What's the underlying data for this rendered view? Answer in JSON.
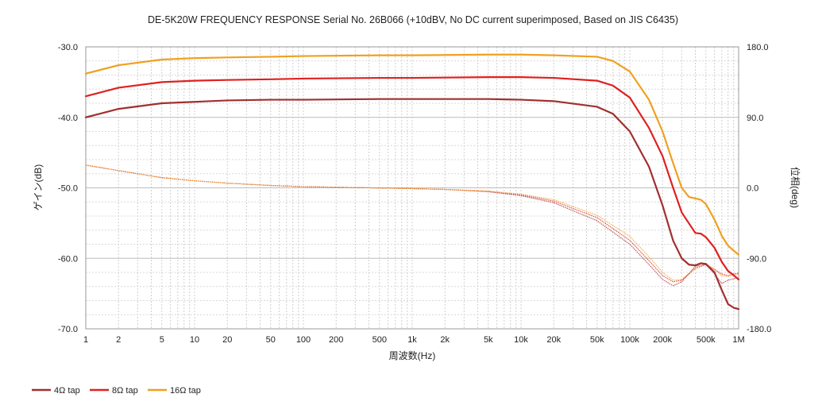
{
  "chart_data": {
    "type": "line",
    "title": "DE-5K20W FREQUENCY RESPONSE Serial No. 26B066 (+10dBV,  No DC current superimposed,  Based on JIS C6435)",
    "xlabel": "周波数(Hz)",
    "ylabel": "ゲイン(dB)",
    "y2label": "位相(deg)",
    "xscale": "log",
    "xlim": [
      1,
      1000000
    ],
    "ylim": [
      -70,
      -30
    ],
    "y2lim": [
      -180,
      180
    ],
    "x_ticks": [
      {
        "value": 1,
        "label": "1"
      },
      {
        "value": 2,
        "label": "2"
      },
      {
        "value": 5,
        "label": "5"
      },
      {
        "value": 10,
        "label": "10"
      },
      {
        "value": 20,
        "label": "20"
      },
      {
        "value": 50,
        "label": "50"
      },
      {
        "value": 100,
        "label": "100"
      },
      {
        "value": 200,
        "label": "200"
      },
      {
        "value": 500,
        "label": "500"
      },
      {
        "value": 1000,
        "label": "1k"
      },
      {
        "value": 2000,
        "label": "2k"
      },
      {
        "value": 5000,
        "label": "5k"
      },
      {
        "value": 10000,
        "label": "10k"
      },
      {
        "value": 20000,
        "label": "20k"
      },
      {
        "value": 50000,
        "label": "50k"
      },
      {
        "value": 100000,
        "label": "100k"
      },
      {
        "value": 200000,
        "label": "200k"
      },
      {
        "value": 500000,
        "label": "500k"
      },
      {
        "value": 1000000,
        "label": "1M"
      }
    ],
    "y_ticks": [
      {
        "value": -30,
        "label": "-30.0"
      },
      {
        "value": -40,
        "label": "-40.0"
      },
      {
        "value": -50,
        "label": "-50.0"
      },
      {
        "value": -60,
        "label": "-60.0"
      },
      {
        "value": -70,
        "label": "-70.0"
      }
    ],
    "y2_ticks": [
      {
        "value": 180,
        "label": "180.0"
      },
      {
        "value": 90,
        "label": "90.0"
      },
      {
        "value": 0,
        "label": "0.0"
      },
      {
        "value": -90,
        "label": "-90.0"
      },
      {
        "value": -180,
        "label": "-180.0"
      }
    ],
    "grid": true,
    "legend_position": "bottom-left",
    "series": [
      {
        "name": "4Ω tap",
        "color": "#a03030",
        "gain": [
          [
            1,
            -40.0
          ],
          [
            2,
            -38.8
          ],
          [
            5,
            -38.0
          ],
          [
            10,
            -37.8
          ],
          [
            20,
            -37.6
          ],
          [
            50,
            -37.5
          ],
          [
            100,
            -37.5
          ],
          [
            500,
            -37.4
          ],
          [
            1000,
            -37.4
          ],
          [
            5000,
            -37.4
          ],
          [
            10000,
            -37.5
          ],
          [
            20000,
            -37.7
          ],
          [
            50000,
            -38.5
          ],
          [
            70000,
            -39.5
          ],
          [
            100000,
            -42.0
          ],
          [
            150000,
            -47.0
          ],
          [
            200000,
            -52.5
          ],
          [
            250000,
            -57.5
          ],
          [
            300000,
            -60.0
          ],
          [
            350000,
            -60.9
          ],
          [
            400000,
            -61.0
          ],
          [
            450000,
            -60.7
          ],
          [
            500000,
            -60.8
          ],
          [
            600000,
            -62.0
          ],
          [
            700000,
            -64.5
          ],
          [
            800000,
            -66.5
          ],
          [
            900000,
            -67.0
          ],
          [
            1000000,
            -67.2
          ]
        ],
        "phase": [
          [
            1,
            29
          ],
          [
            2,
            22
          ],
          [
            5,
            13
          ],
          [
            10,
            9
          ],
          [
            20,
            6
          ],
          [
            50,
            3
          ],
          [
            100,
            1.5
          ],
          [
            200,
            0.8
          ],
          [
            500,
            -0.2
          ],
          [
            1000,
            -1
          ],
          [
            2000,
            -2
          ],
          [
            5000,
            -5
          ],
          [
            10000,
            -10
          ],
          [
            20000,
            -19
          ],
          [
            50000,
            -42
          ],
          [
            100000,
            -72
          ],
          [
            150000,
            -98
          ],
          [
            200000,
            -117
          ],
          [
            250000,
            -125
          ],
          [
            300000,
            -120
          ],
          [
            400000,
            -100
          ],
          [
            500000,
            -98
          ],
          [
            600000,
            -110
          ],
          [
            700000,
            -122
          ],
          [
            800000,
            -118
          ],
          [
            900000,
            -116
          ],
          [
            1000000,
            -115
          ]
        ]
      },
      {
        "name": "8Ω tap",
        "color": "#e02020",
        "gain": [
          [
            1,
            -37.0
          ],
          [
            2,
            -35.8
          ],
          [
            5,
            -35.0
          ],
          [
            10,
            -34.8
          ],
          [
            20,
            -34.7
          ],
          [
            50,
            -34.6
          ],
          [
            100,
            -34.5
          ],
          [
            500,
            -34.4
          ],
          [
            1000,
            -34.4
          ],
          [
            5000,
            -34.3
          ],
          [
            10000,
            -34.3
          ],
          [
            20000,
            -34.4
          ],
          [
            50000,
            -34.8
          ],
          [
            70000,
            -35.5
          ],
          [
            100000,
            -37.2
          ],
          [
            150000,
            -41.5
          ],
          [
            200000,
            -45.5
          ],
          [
            250000,
            -50.0
          ],
          [
            300000,
            -53.5
          ],
          [
            400000,
            -56.4
          ],
          [
            450000,
            -56.5
          ],
          [
            500000,
            -57.0
          ],
          [
            600000,
            -58.5
          ],
          [
            700000,
            -60.5
          ],
          [
            800000,
            -61.8
          ],
          [
            900000,
            -62.4
          ],
          [
            1000000,
            -63.0
          ]
        ],
        "phase": [
          [
            1,
            29
          ],
          [
            2,
            22
          ],
          [
            5,
            13
          ],
          [
            10,
            9
          ],
          [
            20,
            6
          ],
          [
            50,
            3
          ],
          [
            100,
            1.5
          ],
          [
            200,
            0.8
          ],
          [
            500,
            -0.2
          ],
          [
            1000,
            -1
          ],
          [
            2000,
            -2
          ],
          [
            5000,
            -4.5
          ],
          [
            10000,
            -9
          ],
          [
            20000,
            -17
          ],
          [
            50000,
            -38
          ],
          [
            100000,
            -67
          ],
          [
            150000,
            -93
          ],
          [
            200000,
            -112
          ],
          [
            250000,
            -120
          ],
          [
            300000,
            -118
          ],
          [
            400000,
            -103
          ],
          [
            500000,
            -98
          ],
          [
            600000,
            -104
          ],
          [
            700000,
            -110
          ],
          [
            800000,
            -112
          ],
          [
            900000,
            -110
          ],
          [
            1000000,
            -109
          ]
        ]
      },
      {
        "name": "16Ω tap",
        "color": "#f0a020",
        "gain": [
          [
            1,
            -33.8
          ],
          [
            2,
            -32.6
          ],
          [
            5,
            -31.8
          ],
          [
            10,
            -31.6
          ],
          [
            20,
            -31.5
          ],
          [
            50,
            -31.4
          ],
          [
            100,
            -31.3
          ],
          [
            500,
            -31.2
          ],
          [
            1000,
            -31.2
          ],
          [
            5000,
            -31.1
          ],
          [
            10000,
            -31.1
          ],
          [
            20000,
            -31.2
          ],
          [
            50000,
            -31.4
          ],
          [
            70000,
            -32.0
          ],
          [
            100000,
            -33.5
          ],
          [
            150000,
            -37.5
          ],
          [
            200000,
            -42.0
          ],
          [
            250000,
            -46.5
          ],
          [
            300000,
            -50.0
          ],
          [
            350000,
            -51.3
          ],
          [
            400000,
            -51.5
          ],
          [
            450000,
            -51.7
          ],
          [
            500000,
            -52.3
          ],
          [
            600000,
            -54.5
          ],
          [
            700000,
            -56.8
          ],
          [
            800000,
            -58.2
          ],
          [
            900000,
            -58.9
          ],
          [
            1000000,
            -59.5
          ]
        ],
        "phase": [
          [
            1,
            29
          ],
          [
            2,
            22
          ],
          [
            5,
            13
          ],
          [
            10,
            9
          ],
          [
            20,
            6
          ],
          [
            50,
            3
          ],
          [
            100,
            1.5
          ],
          [
            200,
            0.8
          ],
          [
            500,
            -0.2
          ],
          [
            1000,
            -1
          ],
          [
            2000,
            -2
          ],
          [
            5000,
            -4
          ],
          [
            10000,
            -8
          ],
          [
            20000,
            -15
          ],
          [
            50000,
            -35
          ],
          [
            100000,
            -62
          ],
          [
            150000,
            -88
          ],
          [
            200000,
            -108
          ],
          [
            250000,
            -118
          ],
          [
            300000,
            -117
          ],
          [
            400000,
            -102
          ],
          [
            500000,
            -96
          ],
          [
            600000,
            -105
          ],
          [
            700000,
            -112
          ],
          [
            800000,
            -113
          ],
          [
            900000,
            -111
          ],
          [
            1000000,
            -110
          ]
        ]
      }
    ]
  }
}
